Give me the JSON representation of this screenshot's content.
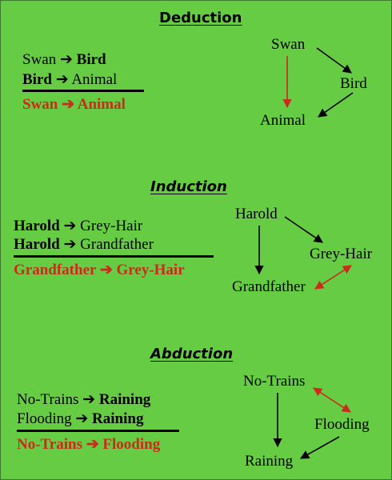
{
  "deduction": {
    "title": "Deduction",
    "premise1": {
      "a": "Swan",
      "arrow": "➔",
      "b": "Bird"
    },
    "premise2": {
      "a": "Bird",
      "arrow": "➔",
      "b": "Animal"
    },
    "conclusion": {
      "a": "Swan",
      "arrow": "➔",
      "b": "Animal"
    },
    "nodes": {
      "top": "Swan",
      "right": "Bird",
      "bottom": "Animal"
    }
  },
  "induction": {
    "title": "Induction",
    "premise1": {
      "a": "Harold",
      "arrow": "➔",
      "b": "Grey-Hair"
    },
    "premise2": {
      "a": "Harold",
      "arrow": "➔",
      "b": "Grandfather"
    },
    "conclusion": {
      "a": "Grandfather",
      "arrow": "➔",
      "b": "Grey-Hair"
    },
    "nodes": {
      "top": "Harold",
      "right": "Grey-Hair",
      "bottom": "Grandfather"
    }
  },
  "abduction": {
    "title": "Abduction",
    "premise1": {
      "a": "No-Trains",
      "arrow": "➔",
      "b": "Raining"
    },
    "premise2": {
      "a": "Flooding",
      "arrow": "➔",
      "b": "Raining"
    },
    "conclusion": {
      "a": "No-Trains",
      "arrow": "➔",
      "b": "Flooding"
    },
    "nodes": {
      "top": "No-Trains",
      "right": "Flooding",
      "bottom": "Raining"
    }
  },
  "colors": {
    "background": "#66cc44",
    "conclusion": "#cc2a1a",
    "black_arrow": "#000000",
    "red_arrow": "#cc2a1a"
  }
}
